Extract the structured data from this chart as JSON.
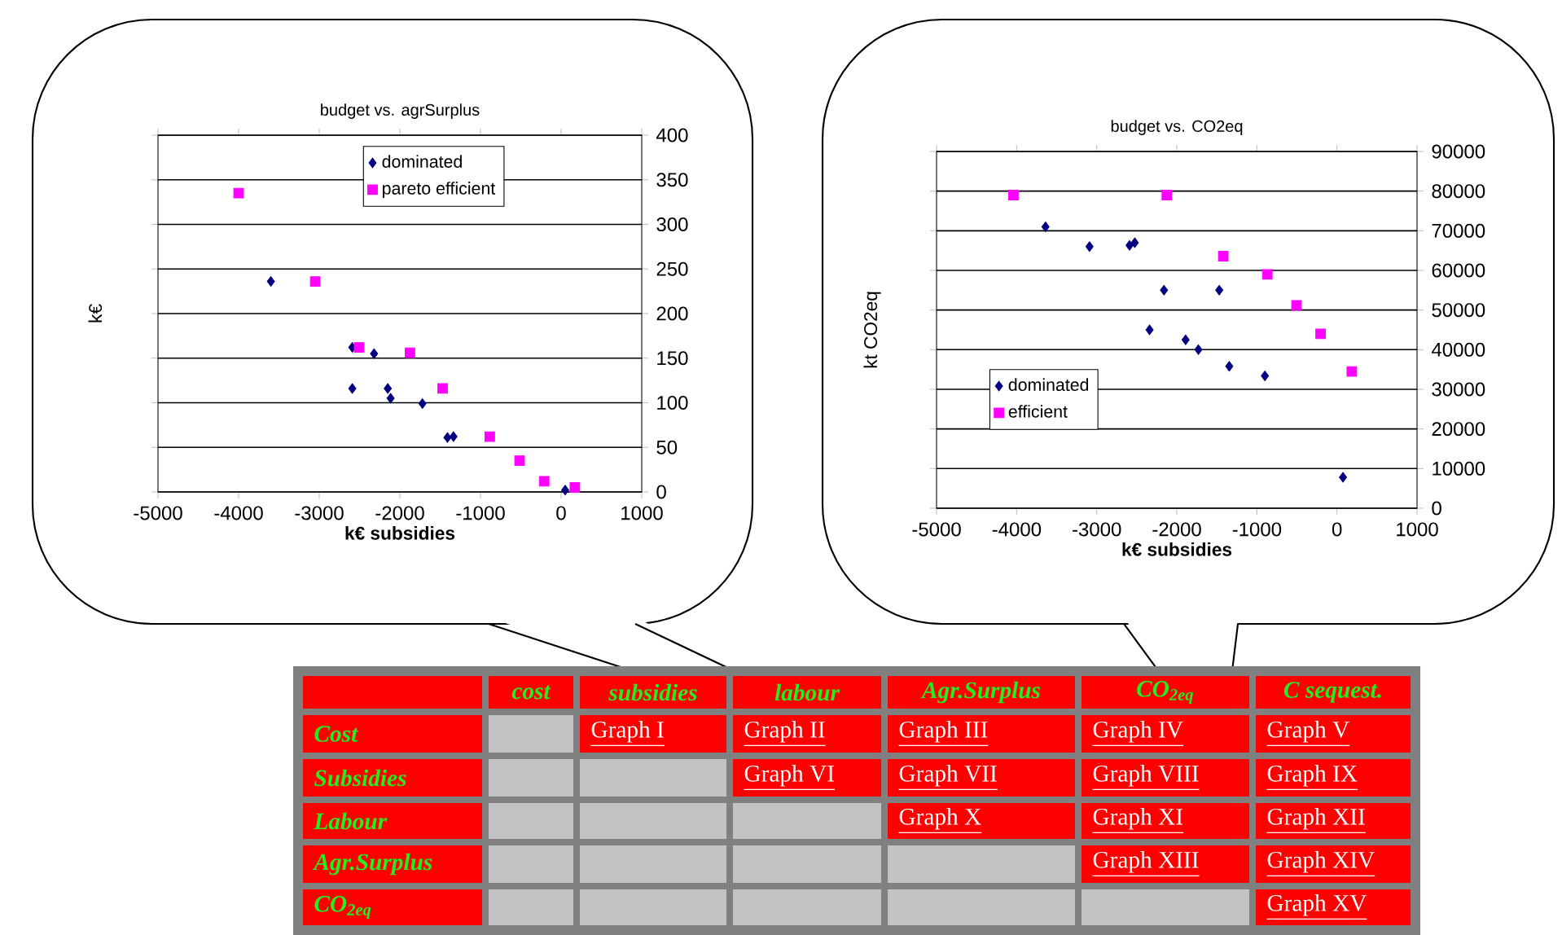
{
  "chart_data": [
    {
      "type": "scatter",
      "title": "budget vs. agrSurplus",
      "xlabel": "k€ subsidies",
      "ylabel": "k€",
      "xlim": [
        -5000,
        1000
      ],
      "ylim": [
        0,
        400
      ],
      "xticks": [
        -5000,
        -4000,
        -3000,
        -2000,
        -1000,
        0,
        1000
      ],
      "yticks": [
        0,
        50,
        100,
        150,
        200,
        250,
        300,
        350,
        400
      ],
      "grid": "y",
      "legend": "top",
      "series": [
        {
          "name": "dominated",
          "color": "#000080",
          "marker": "diamond",
          "x": [
            -3600,
            -2590,
            -2320,
            -2590,
            -2150,
            -2115,
            -1720,
            -1410,
            -1335,
            50
          ],
          "values": [
            236,
            162,
            155,
            116,
            116,
            105,
            99,
            61,
            62,
            2
          ]
        },
        {
          "name": "pareto efficient",
          "color": "#ff00ff",
          "marker": "square",
          "x": [
            -4000,
            -3050,
            -2505,
            -1875,
            -1470,
            -885,
            -515,
            -210,
            170
          ],
          "values": [
            335,
            236,
            162,
            156,
            116,
            62,
            35,
            12,
            5
          ]
        }
      ]
    },
    {
      "type": "scatter",
      "title": "budget vs. CO2eq",
      "xlabel": "k€ subsidies",
      "ylabel": "kt CO2eq",
      "xlim": [
        -5000,
        1000
      ],
      "ylim": [
        0,
        90000
      ],
      "xticks": [
        -5000,
        -4000,
        -3000,
        -2000,
        -1000,
        0,
        1000
      ],
      "yticks": [
        0,
        10000,
        20000,
        30000,
        40000,
        50000,
        60000,
        70000,
        80000,
        90000
      ],
      "grid": "y",
      "legend": "left",
      "series": [
        {
          "name": "dominated",
          "color": "#000080",
          "marker": "diamond",
          "x": [
            -3640,
            -3090,
            -2590,
            -2525,
            -2160,
            -1470,
            -2340,
            -1890,
            -1730,
            -1345,
            -900,
            75
          ],
          "values": [
            71000,
            66000,
            66300,
            67000,
            55000,
            55000,
            45000,
            42500,
            40000,
            35800,
            33400,
            7800
          ]
        },
        {
          "name": "efficient",
          "color": "#ff00ff",
          "marker": "square",
          "x": [
            -4040,
            -2125,
            -1420,
            -870,
            -505,
            -205,
            185
          ],
          "values": [
            79000,
            79000,
            63600,
            59000,
            51200,
            44000,
            34500
          ]
        }
      ]
    },
    {
      "type": "other",
      "categories": [
        "cost",
        "subsidies",
        "labour",
        "Agr.Surplus",
        "CO$_{2eq}$",
        "C sequest."
      ],
      "y_categories": [
        "Cost",
        "Subsidies",
        "Labour",
        "Agr.Surplus",
        "CO$_{2eq}$"
      ],
      "cell_labels": [
        [
          null,
          "Graph I",
          "Graph II",
          "Graph III",
          "Graph IV",
          "Graph V"
        ],
        [
          null,
          null,
          "Graph VI",
          "Graph VII",
          "Graph VIII",
          "Graph IX"
        ],
        [
          null,
          null,
          null,
          "Graph X",
          "Graph XI",
          "Graph XII"
        ],
        [
          null,
          null,
          null,
          null,
          "Graph XIII",
          "Graph XIV"
        ],
        [
          null,
          null,
          null,
          null,
          null,
          "Graph XV"
        ]
      ]
    }
  ]
}
